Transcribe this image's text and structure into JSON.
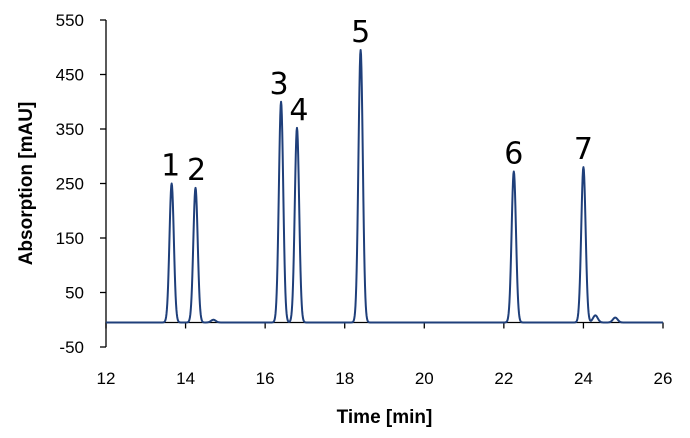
{
  "chart_data": {
    "type": "line",
    "xlabel": "Time [min]",
    "ylabel": "Absorption [mAU]",
    "xlim": [
      12,
      26
    ],
    "ylim": [
      -50,
      550
    ],
    "xticks": [
      12,
      14,
      16,
      18,
      20,
      22,
      24,
      26
    ],
    "yticks": [
      -50,
      50,
      150,
      250,
      350,
      450,
      550
    ],
    "baseline": -5,
    "grid": false,
    "peaks": [
      {
        "label": "1",
        "time": 13.65,
        "height": 250
      },
      {
        "label": "2",
        "time": 14.25,
        "height": 242
      },
      {
        "label": "3",
        "time": 16.4,
        "height": 400
      },
      {
        "label": "4",
        "time": 16.8,
        "height": 352
      },
      {
        "label": "5",
        "time": 18.4,
        "height": 495
      },
      {
        "label": "6",
        "time": 22.25,
        "height": 272
      },
      {
        "label": "7",
        "time": 24.0,
        "height": 280
      }
    ],
    "minor_features": [
      {
        "time": 14.7,
        "height": 0
      },
      {
        "time": 24.3,
        "height": 8
      },
      {
        "time": 24.8,
        "height": 4
      }
    ]
  },
  "colors": {
    "trace": "#1f3f7a",
    "axis": "#000000"
  }
}
